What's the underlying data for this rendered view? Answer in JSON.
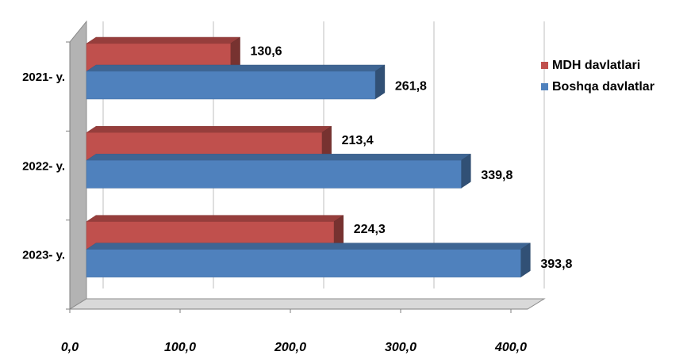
{
  "chart_data": {
    "type": "bar",
    "orientation": "horizontal",
    "categories": [
      "2021- y.",
      "2022- y.",
      "2023- y."
    ],
    "series": [
      {
        "name": "MDH davlatlari",
        "values": [
          130.6,
          213.4,
          224.3
        ],
        "labels": [
          "130,6",
          "213,4",
          "224,3"
        ],
        "color": "#C0504D"
      },
      {
        "name": "Boshqa davlatlar",
        "values": [
          261.8,
          339.8,
          393.8
        ],
        "labels": [
          "261,8",
          "339,8",
          "393,8"
        ],
        "color": "#4F81BD"
      }
    ],
    "xlim": [
      0,
      400
    ],
    "xticks": [
      0,
      100,
      200,
      300,
      400
    ],
    "xtick_labels": [
      "0,0",
      "100,0",
      "200,0",
      "300,0",
      "400,0"
    ],
    "grid": true,
    "legend_position": "right",
    "title": "",
    "xlabel": "",
    "ylabel": ""
  }
}
